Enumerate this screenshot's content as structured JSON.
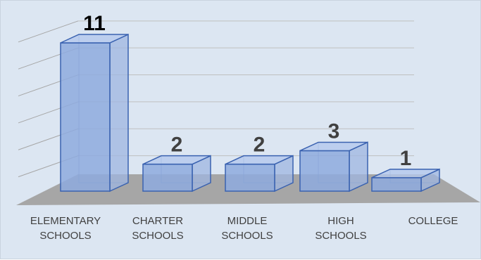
{
  "chart_data": {
    "type": "bar",
    "title": "",
    "xlabel": "",
    "ylabel": "",
    "categories": [
      [
        "ELEMENTARY",
        "SCHOOLS"
      ],
      [
        "CHARTER",
        "SCHOOLS"
      ],
      [
        "MIDDLE",
        "SCHOOLS"
      ],
      [
        "HIGH",
        "SCHOOLS"
      ],
      [
        "COLLEGE"
      ]
    ],
    "values": [
      11,
      2,
      2,
      3,
      1
    ],
    "value_labels": [
      "11",
      "2",
      "2",
      "3",
      "1"
    ],
    "ylim": [
      0,
      12
    ],
    "grid": true,
    "style": "3d-column",
    "colors": {
      "bar_fill": "#8eaade",
      "bar_top": "#b4c8ec",
      "bar_side": "#9fb6e0",
      "bar_edge": "#3a62b0",
      "floor": "#a6a6a6",
      "background": "#dce6f2",
      "value_label_first": "#000000",
      "value_label": "#404040"
    }
  }
}
